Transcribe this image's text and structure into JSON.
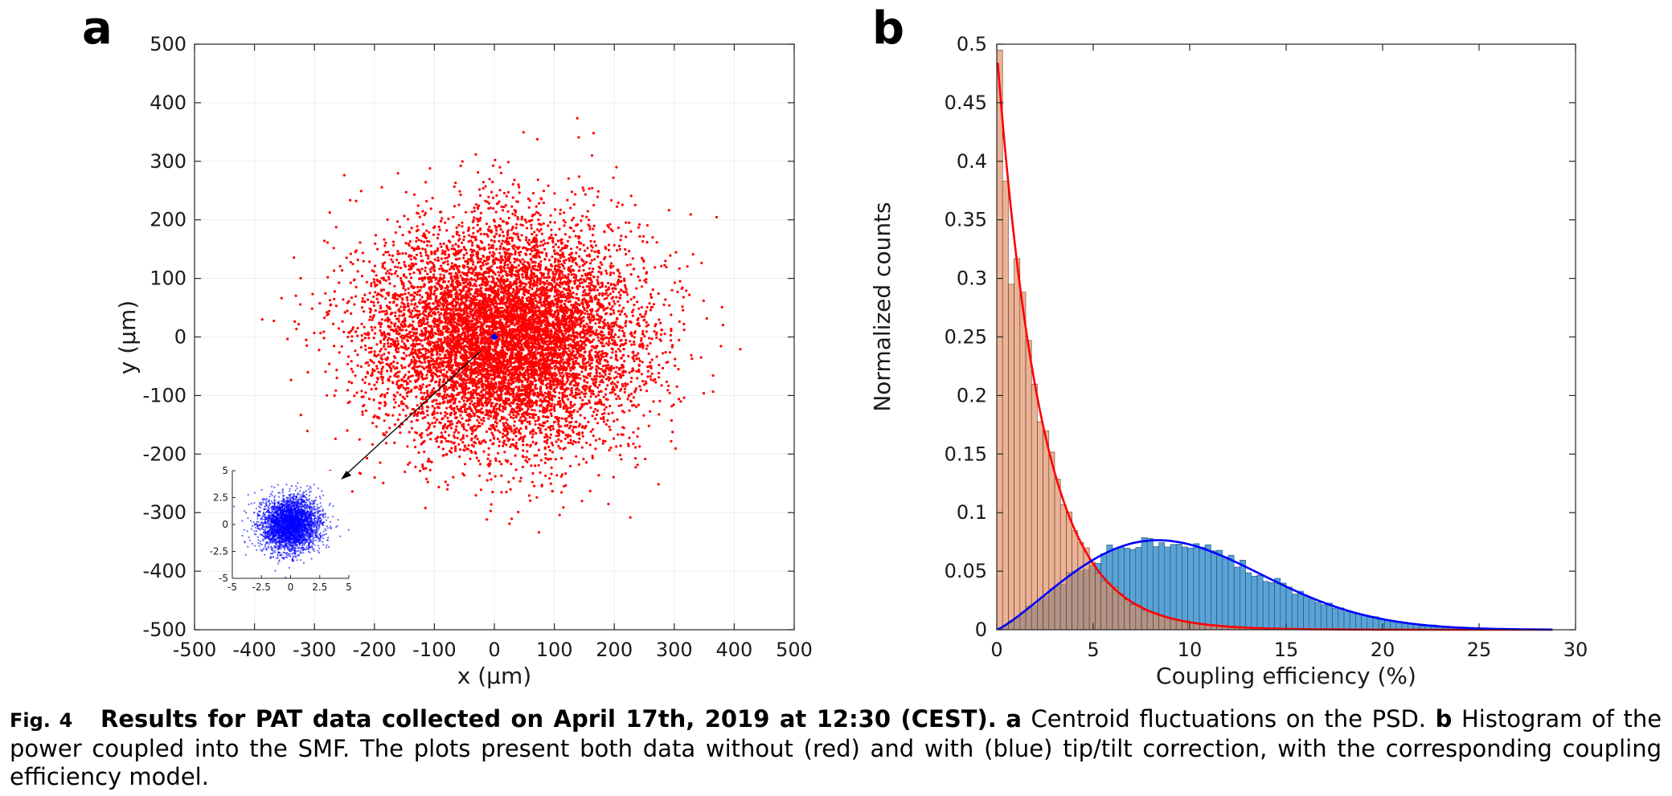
{
  "caption": {
    "fig_label": "Fig. 4",
    "title": "Results for PAT data collected on April 17th, 2019 at 12:30 (CEST).",
    "a_label": "a",
    "a_text": "Centroid fluctuations on the PSD.",
    "b_label": "b",
    "b_text": "Histogram of the power coupled into the SMF. The plots present both data without (red) and with (blue) tip/tilt correction, with the corresponding coupling efficiency model."
  },
  "chart_data": [
    {
      "panel": "a",
      "type": "scatter",
      "xlabel": "x (μm)",
      "ylabel": "y (μm)",
      "xlim": [
        -500,
        500
      ],
      "ylim": [
        -500,
        500
      ],
      "xticks": [
        -500,
        -400,
        -300,
        -200,
        -100,
        0,
        100,
        200,
        300,
        400,
        500
      ],
      "yticks": [
        -500,
        -400,
        -300,
        -200,
        -100,
        0,
        100,
        200,
        300,
        400,
        500
      ],
      "grid": true,
      "series": [
        {
          "color": "#ff0000",
          "n_points": 9000,
          "center": [
            20,
            0
          ],
          "std": [
            110,
            95
          ],
          "shown": "without tip/tilt correction"
        },
        {
          "color": "#0000ff",
          "n_points": 5000,
          "center": [
            0,
            0
          ],
          "std": [
            1.3,
            1.3
          ],
          "shown": "with tip/tilt correction"
        }
      ],
      "inset": {
        "xlim": [
          -5,
          5
        ],
        "ylim": [
          -5,
          5
        ],
        "xticks": [
          -5,
          -2.5,
          0,
          2.5,
          5
        ],
        "yticks": [
          -5,
          -2.5,
          0,
          2.5,
          5
        ],
        "series_color": "#0000ff"
      }
    },
    {
      "panel": "b",
      "type": "bar",
      "xlabel": "Coupling efficiency (%)",
      "ylabel": "Normalized counts",
      "xlim": [
        0,
        30
      ],
      "ylim": [
        0,
        0.5
      ],
      "xticks": [
        0,
        5,
        10,
        15,
        20,
        25,
        30
      ],
      "yticks": [
        0,
        0.05,
        0.1,
        0.15,
        0.2,
        0.25,
        0.3,
        0.35,
        0.4,
        0.45,
        0.5
      ],
      "bin_width": 0.3,
      "series": [
        {
          "color": "#e08a5e",
          "fit_color": "#ff0000",
          "fit": "exponential",
          "peak": 0.495,
          "decay_pct": 2.3
        },
        {
          "color": "#5aa3d6",
          "fit_color": "#0000ff",
          "fit": "rician-like",
          "peak": 0.076,
          "mode_pct": 7.8
        }
      ]
    }
  ]
}
